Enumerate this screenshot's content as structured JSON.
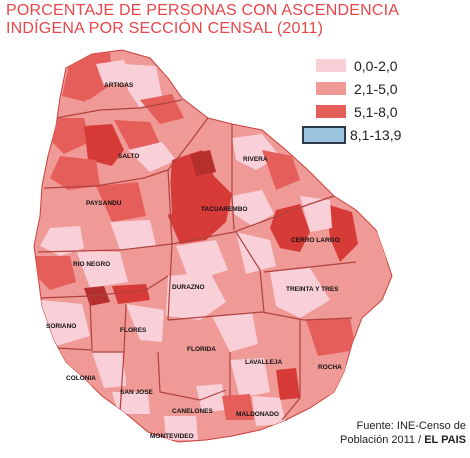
{
  "title": {
    "line1": "PORCENTAJE DE PERSONAS CON ASCENDENCIA",
    "line2": "INDÍGENA POR SECCIÓN CENSAL (2011)"
  },
  "legend": [
    {
      "label": "0,0-2,0",
      "color": "#f9cfd8"
    },
    {
      "label": "2,1-5,0",
      "color": "#ef9a96"
    },
    {
      "label": "5,1-8,0",
      "color": "#e65e5a"
    },
    {
      "label": "8,1-13,9",
      "color": "#7d2a2a",
      "selected_fill": "#9cc4e0"
    }
  ],
  "departments": [
    {
      "name": "ARTIGAS"
    },
    {
      "name": "SALTO"
    },
    {
      "name": "RIVERA"
    },
    {
      "name": "PAYSANDU"
    },
    {
      "name": "TACUAREMBO"
    },
    {
      "name": "CERRO LARGO"
    },
    {
      "name": "RIO NEGRO"
    },
    {
      "name": "DURAZNO"
    },
    {
      "name": "TREINTA Y TRES"
    },
    {
      "name": "SORIANO"
    },
    {
      "name": "FLORES"
    },
    {
      "name": "FLORIDA"
    },
    {
      "name": "LAVALLEJA"
    },
    {
      "name": "ROCHA"
    },
    {
      "name": "COLONIA"
    },
    {
      "name": "SAN JOSE"
    },
    {
      "name": "CANELONES"
    },
    {
      "name": "MALDONADO"
    },
    {
      "name": "MONTEVIDEO"
    }
  ],
  "source": {
    "line1": "Fuente: INE-Censo de",
    "line2_a": "Población 2011 / ",
    "line2_b": "EL PAIS"
  }
}
